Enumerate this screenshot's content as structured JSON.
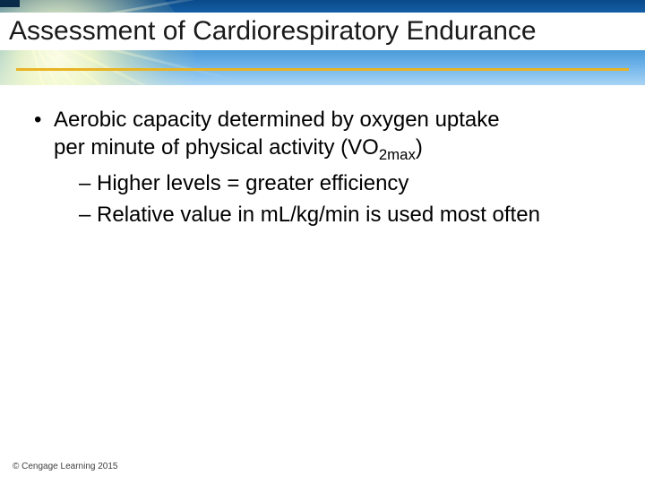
{
  "slide": {
    "title": "Assessment of Cardiorespiratory Endurance",
    "copyright": "© Cengage Learning 2015",
    "banner": {
      "gradient_top": "#0a4a8a",
      "gradient_bottom": "#a8d4f5",
      "gold_line_color": "#e8b423"
    },
    "bullets": {
      "main_line1": "Aerobic capacity determined by oxygen uptake",
      "main_line2_prefix": "per minute of physical activity (VO",
      "main_line2_sub": "2max",
      "main_line2_suffix": ")",
      "sub1": "– Higher levels = greater efficiency",
      "sub2": "– Relative value in mL/kg/min is used most often",
      "font_size_pt": 24,
      "text_color": "#000000"
    }
  }
}
